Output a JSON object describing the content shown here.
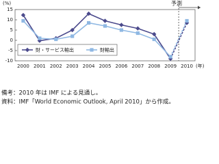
{
  "chart_data": {
    "type": "line",
    "y_unit": "(%)",
    "x_unit": "(年)",
    "annotation": "予測",
    "categories": [
      "2000",
      "2001",
      "2002",
      "2003",
      "2004",
      "2005",
      "2006",
      "2007",
      "2008",
      "2009",
      "2010"
    ],
    "series": [
      {
        "name": "財・サービス輸出",
        "color": "#4b4a8c",
        "marker": "diamond",
        "values": [
          12.3,
          -0.2,
          1.0,
          5.0,
          13.0,
          9.5,
          7.5,
          5.8,
          3.0,
          -9.0,
          8.5
        ]
      },
      {
        "name": "財輸出",
        "color": "#8fb8e3",
        "marker": "square",
        "values": [
          9.5,
          1.0,
          0.5,
          2.0,
          8.5,
          7.0,
          5.0,
          3.5,
          0.5,
          -8.0,
          9.5
        ]
      }
    ],
    "ylim": [
      -10,
      15
    ],
    "yticks": [
      -10,
      -5,
      0,
      5,
      10,
      15
    ],
    "grid": false,
    "legend": "lower-left"
  },
  "notes": [
    "備考：2010 年は IMF による見通し。",
    "資料：IMF「World Economic Outlook, April 2010」から作成。"
  ]
}
